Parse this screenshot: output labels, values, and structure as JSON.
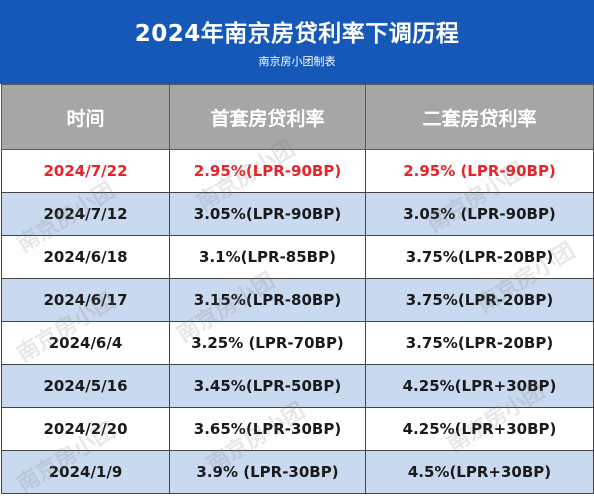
{
  "header": {
    "title": "2024年南京房贷利率下调历程",
    "subtitle": "南京房小团制表"
  },
  "colors": {
    "header_bg": "#1558b8",
    "column_header_bg": "#a6a6a6",
    "row_blue": "#c9d9ef",
    "highlight_text": "#e8242a"
  },
  "table": {
    "columns": [
      "时间",
      "首套房贷利率",
      "二套房贷利率"
    ],
    "rows": [
      {
        "date": "2024/7/22",
        "first": "2.95%(LPR-90BP)",
        "second": "2.95% (LPR-90BP)"
      },
      {
        "date": "2024/7/12",
        "first": "3.05%(LPR-90BP)",
        "second": "3.05% (LPR-90BP)"
      },
      {
        "date": "2024/6/18",
        "first": "3.1%(LPR-85BP)",
        "second": "3.75%(LPR-20BP)"
      },
      {
        "date": "2024/6/17",
        "first": "3.15%(LPR-80BP)",
        "second": "3.75%(LPR-20BP)"
      },
      {
        "date": "2024/6/4",
        "first": "3.25% (LPR-70BP)",
        "second": "3.75%(LPR-20BP)"
      },
      {
        "date": "2024/5/16",
        "first": "3.45%(LPR-50BP)",
        "second": "4.25%(LPR+30BP)"
      },
      {
        "date": "2024/2/20",
        "first": "3.65%(LPR-30BP)",
        "second": "4.25%(LPR+30BP)"
      },
      {
        "date": "2024/1/9",
        "first": "3.9% (LPR-30BP)",
        "second": "4.5%(LPR+30BP)"
      }
    ]
  },
  "watermark_text": "南京房小团"
}
